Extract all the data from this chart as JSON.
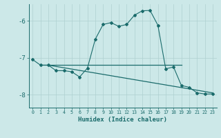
{
  "xlabel": "Humidex (Indice chaleur)",
  "background_color": "#cce8e8",
  "grid_color": "#aed0d0",
  "line_color": "#1a6b6b",
  "xlim": [
    -0.5,
    23.5
  ],
  "ylim": [
    -8.35,
    -5.55
  ],
  "yticks": [
    -8,
    -7,
    -6
  ],
  "xticks": [
    0,
    1,
    2,
    3,
    4,
    5,
    6,
    7,
    8,
    9,
    10,
    11,
    12,
    13,
    14,
    15,
    16,
    17,
    18,
    19,
    20,
    21,
    22,
    23
  ],
  "series1_x": [
    0,
    1,
    2,
    3,
    4,
    5,
    6,
    7,
    8,
    9,
    10,
    11,
    12,
    13,
    14,
    15,
    16,
    17,
    18,
    19,
    20,
    21,
    22,
    23
  ],
  "series1_y": [
    -7.05,
    -7.2,
    -7.2,
    -7.35,
    -7.35,
    -7.38,
    -7.52,
    -7.28,
    -6.5,
    -6.1,
    -6.05,
    -6.15,
    -6.1,
    -5.85,
    -5.73,
    -5.72,
    -6.12,
    -7.3,
    -7.25,
    -7.75,
    -7.8,
    -7.95,
    -7.98,
    -7.98
  ],
  "series3_x": [
    1,
    19
  ],
  "series3_y": [
    -7.2,
    -7.2
  ],
  "series4_x": [
    2,
    23
  ],
  "series4_y": [
    -7.2,
    -7.95
  ]
}
